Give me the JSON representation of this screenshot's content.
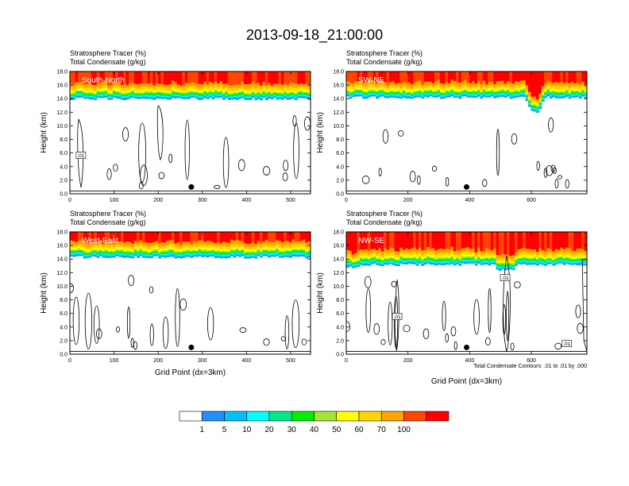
{
  "figure": {
    "title": "2013-09-18_21:00:00",
    "note": "Total Condensate Contours: .01 to .01 by .000"
  },
  "colorbar": {
    "labels": [
      "1",
      "5",
      "10",
      "20",
      "30",
      "40",
      "50",
      "60",
      "70",
      "100"
    ],
    "colors": [
      "#ffffff",
      "#1e90ff",
      "#00bfff",
      "#00ffff",
      "#00e88c",
      "#00ee00",
      "#a0e632",
      "#ffff00",
      "#ffd700",
      "#ffa500",
      "#ff4500",
      "#ff0000"
    ]
  },
  "chart_data": [
    {
      "type": "heatmap",
      "panel_label": "South-North",
      "subtitle_left": "Stratosphere Tracer   (%)",
      "subtitle_left2": "Total Condensate   (g/kg)",
      "ylabel": "Height (km)",
      "xlabel": "",
      "xlim": [
        0,
        545
      ],
      "ylim": [
        0,
        18
      ],
      "xticks": [
        "0",
        "100",
        "200",
        "300",
        "400",
        "500"
      ],
      "yticks": [
        "0.0",
        "2.0",
        "4.0",
        "6.0",
        "8.0",
        "10.0",
        "12.0",
        "14.0",
        "16.0",
        "18.0"
      ],
      "tracer_base_km": 14.0,
      "marker_x": 275,
      "marker_y_km": 1.0,
      "contour_labels": [
        {
          "text": ".01",
          "x": 25,
          "y": 5.6
        }
      ]
    },
    {
      "type": "heatmap",
      "panel_label": "SW-NE",
      "subtitle_left": "Stratosphere Tracer   (%)",
      "subtitle_left2": "Total Condensate   (g/kg)",
      "ylabel": "Height (km)",
      "xlabel": "",
      "xlim": [
        0,
        780
      ],
      "ylim": [
        0,
        18
      ],
      "xticks": [
        "0",
        "200",
        "400",
        "600"
      ],
      "yticks": [
        "0.0",
        "2.0",
        "4.0",
        "6.0",
        "8.0",
        "10.0",
        "12.0",
        "14.0",
        "16.0",
        "18.0"
      ],
      "tracer_base_km": 14.2,
      "marker_x": 390,
      "marker_y_km": 1.0,
      "contour_labels": []
    },
    {
      "type": "heatmap",
      "panel_label": "West-East",
      "subtitle_left": "Stratosphere Tracer   (%)",
      "subtitle_left2": "Total Condensate   (g/kg)",
      "ylabel": "Height (km)",
      "xlabel": "Grid Point (dx=3km)",
      "xlim": [
        0,
        545
      ],
      "ylim": [
        0,
        18
      ],
      "xticks": [
        "0",
        "100",
        "200",
        "300",
        "400",
        "500"
      ],
      "yticks": [
        "0.0",
        "2.0",
        "4.0",
        "6.0",
        "8.0",
        "10.0",
        "12.0",
        "14.0",
        "16.0",
        "18.0"
      ],
      "tracer_base_km": 14.3,
      "marker_x": 275,
      "marker_y_km": 1.0,
      "contour_labels": []
    },
    {
      "type": "heatmap",
      "panel_label": "NW-SE",
      "subtitle_left": "Stratosphere Tracer   (%)",
      "subtitle_left2": "Total Condensate   (g/kg)",
      "ylabel": "Height (km)",
      "xlabel": "Grid Point (dx=3km)",
      "xlim": [
        0,
        780
      ],
      "ylim": [
        0,
        18
      ],
      "xticks": [
        "0",
        "200",
        "400",
        "600"
      ],
      "yticks": [
        "0.0",
        "2.0",
        "4.0",
        "6.0",
        "8.0",
        "10.0",
        "12.0",
        "14.0",
        "16.0",
        "18.0"
      ],
      "tracer_base_km": 13.2,
      "marker_x": 390,
      "marker_y_km": 1.0,
      "contour_labels": [
        {
          "text": ".01",
          "x": 165,
          "y": 5.5
        },
        {
          "text": ".01",
          "x": 515,
          "y": 11.2
        },
        {
          "text": ".01",
          "x": 715,
          "y": 1.5
        }
      ]
    }
  ]
}
